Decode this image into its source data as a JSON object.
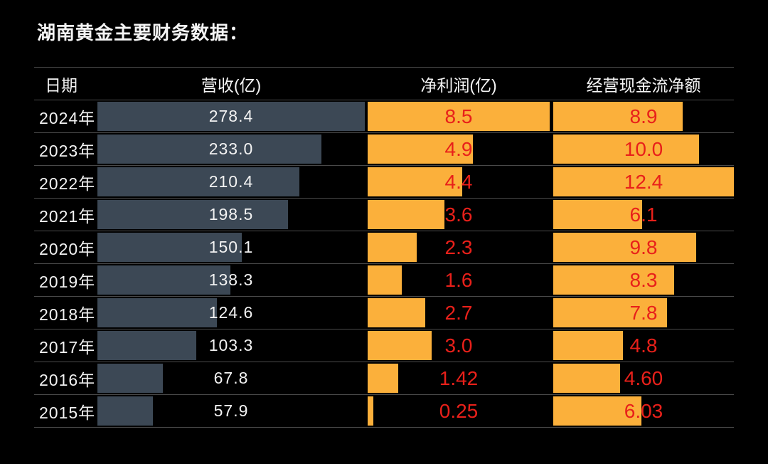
{
  "title": "湖南黄金主要财务数据：",
  "colors": {
    "background": "#000000",
    "revenue_bar": "#3C4855",
    "profit_bar": "#FBB03B",
    "cash_flow_bar": "#FBB03B",
    "value_red": "#E8201A",
    "text_white": "#F2F2F2",
    "grid_line": "#4A4A4A"
  },
  "table": {
    "headers": {
      "date": "日期",
      "revenue": "营收(亿)",
      "net_profit": "净利润(亿)",
      "cash_flow": "经营现金流净额"
    },
    "rows": [
      {
        "year": "2024年",
        "revenue": "278.4",
        "net_profit": "8.5",
        "cash_flow": "8.9"
      },
      {
        "year": "2023年",
        "revenue": "233.0",
        "net_profit": "4.9",
        "cash_flow": "10.0"
      },
      {
        "year": "2022年",
        "revenue": "210.4",
        "net_profit": "4.4",
        "cash_flow": "12.4"
      },
      {
        "year": "2021年",
        "revenue": "198.5",
        "net_profit": "3.6",
        "cash_flow": "6.1"
      },
      {
        "year": "2020年",
        "revenue": "150.1",
        "net_profit": "2.3",
        "cash_flow": "9.8"
      },
      {
        "year": "2019年",
        "revenue": "138.3",
        "net_profit": "1.6",
        "cash_flow": "8.3"
      },
      {
        "year": "2018年",
        "revenue": "124.6",
        "net_profit": "2.7",
        "cash_flow": "7.8"
      },
      {
        "year": "2017年",
        "revenue": "103.3",
        "net_profit": "3.0",
        "cash_flow": "4.8"
      },
      {
        "year": "2016年",
        "revenue": "67.8",
        "net_profit": "1.42",
        "cash_flow": "4.60"
      },
      {
        "year": "2015年",
        "revenue": "57.9",
        "net_profit": "0.25",
        "cash_flow": "6.03"
      }
    ]
  },
  "chart_data": {
    "type": "bar",
    "orientation": "horizontal",
    "title": "湖南黄金主要财务数据：",
    "categories": [
      "2024年",
      "2023年",
      "2022年",
      "2021年",
      "2020年",
      "2019年",
      "2018年",
      "2017年",
      "2016年",
      "2015年"
    ],
    "series": [
      {
        "name": "营收(亿)",
        "values": [
          278.4,
          233.0,
          210.4,
          198.5,
          150.1,
          138.3,
          124.6,
          103.3,
          67.8,
          57.9
        ],
        "xlim": [
          0,
          278.4
        ],
        "bar_color": "#3C4855",
        "label_color": "#F2F2F2"
      },
      {
        "name": "净利润(亿)",
        "values": [
          8.5,
          4.9,
          4.4,
          3.6,
          2.3,
          1.6,
          2.7,
          3.0,
          1.42,
          0.25
        ],
        "xlim": [
          0,
          8.5
        ],
        "bar_color": "#FBB03B",
        "label_color": "#E8201A"
      },
      {
        "name": "经营现金流净额",
        "values": [
          8.9,
          10.0,
          12.4,
          6.1,
          9.8,
          8.3,
          7.8,
          4.8,
          4.6,
          6.03
        ],
        "xlim": [
          0,
          12.4
        ],
        "bar_color": "#FBB03B",
        "label_color": "#E8201A"
      }
    ],
    "value_labels": true,
    "grid": false,
    "legend_position": "none"
  }
}
